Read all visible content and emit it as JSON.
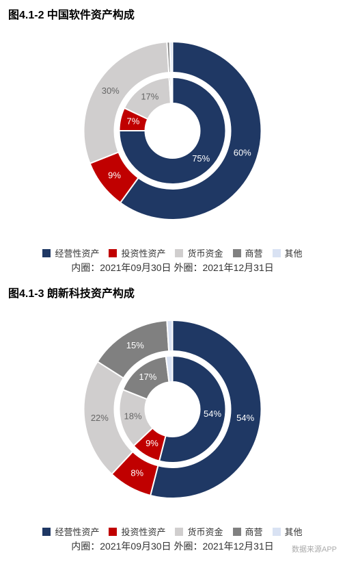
{
  "charts": [
    {
      "title": "图4.1-2 中国软件资产构成",
      "type": "nested-donut",
      "subcaption": "内圈：2021年09月30日 外圈：2021年12月31日",
      "legend": [
        {
          "label": "经营性资产",
          "color": "#1f3864"
        },
        {
          "label": "投资性资产",
          "color": "#c00000"
        },
        {
          "label": "货币资金",
          "color": "#d0cece"
        },
        {
          "label": "商营",
          "color": "#808080"
        },
        {
          "label": "其他",
          "color": "#d9e2f3"
        }
      ],
      "outer": {
        "values": [
          60,
          9,
          30,
          0.5,
          0.5
        ],
        "colors": [
          "#1f3864",
          "#c00000",
          "#d0cece",
          "#808080",
          "#d9e2f3"
        ],
        "labels": [
          "60%",
          "9%",
          "30%",
          "",
          ""
        ],
        "label_colors": [
          "#ffffff",
          "#ffffff",
          "#666666",
          "",
          ""
        ]
      },
      "inner": {
        "values": [
          75,
          7,
          17,
          0.5,
          0.5
        ],
        "colors": [
          "#1f3864",
          "#c00000",
          "#d0cece",
          "#808080",
          "#d9e2f3"
        ],
        "labels": [
          "75%",
          "7%",
          "17%",
          "",
          ""
        ],
        "label_colors": [
          "#ffffff",
          "#ffffff",
          "#666666",
          "",
          ""
        ]
      },
      "background": "#ffffff",
      "stroke": "#ffffff",
      "stroke_width": 2,
      "outer_radius": 130,
      "outer_inner_radius": 85,
      "inner_radius": 78,
      "inner_inner_radius": 40,
      "start_angle_deg": -90
    },
    {
      "title": "图4.1-3 朗新科技资产构成",
      "type": "nested-donut",
      "subcaption": "内圈：2021年09月30日 外圈：2021年12月31日",
      "footer_note": "数据来源APP",
      "legend": [
        {
          "label": "经营性资产",
          "color": "#1f3864"
        },
        {
          "label": "投资性资产",
          "color": "#c00000"
        },
        {
          "label": "货币资金",
          "color": "#d0cece"
        },
        {
          "label": "商营",
          "color": "#808080"
        },
        {
          "label": "其他",
          "color": "#d9e2f3"
        }
      ],
      "outer": {
        "values": [
          54,
          8,
          22,
          15,
          1
        ],
        "colors": [
          "#1f3864",
          "#c00000",
          "#d0cece",
          "#808080",
          "#d9e2f3"
        ],
        "labels": [
          "54%",
          "8%",
          "22%",
          "15%",
          ""
        ],
        "label_colors": [
          "#ffffff",
          "#ffffff",
          "#666666",
          "#ffffff",
          ""
        ]
      },
      "inner": {
        "values": [
          54,
          9,
          18,
          17,
          2
        ],
        "colors": [
          "#1f3864",
          "#c00000",
          "#d0cece",
          "#808080",
          "#d9e2f3"
        ],
        "labels": [
          "54%",
          "9%",
          "18%",
          "17%",
          ""
        ],
        "label_colors": [
          "#ffffff",
          "#ffffff",
          "#666666",
          "#ffffff",
          ""
        ]
      },
      "background": "#ffffff",
      "stroke": "#ffffff",
      "stroke_width": 2,
      "outer_radius": 130,
      "outer_inner_radius": 85,
      "inner_radius": 78,
      "inner_inner_radius": 40,
      "start_angle_deg": -90
    }
  ]
}
